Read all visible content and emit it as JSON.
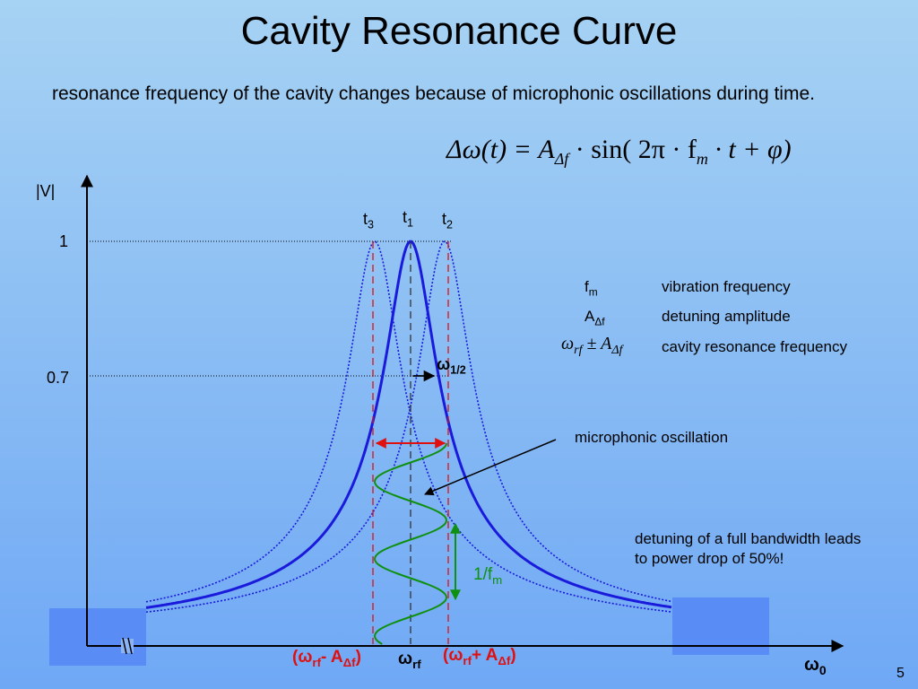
{
  "title": "Cavity Resonance Curve",
  "intro": "resonance frequency of the cavity changes because of microphonic oscillations during time.",
  "formula": {
    "lhs": "Δω(t) = A",
    "lhs_sub": "Δf",
    "mid": " · sin( 2π · f",
    "mid_sub": "m",
    "rhs": " · t + φ)"
  },
  "axes": {
    "y_label": "|V|",
    "tick_1": "1",
    "tick_07": "0.7",
    "x_label": "ω",
    "x_label_sub": "0"
  },
  "time_labels": [
    {
      "base": "t",
      "sub": "3"
    },
    {
      "base": "t",
      "sub": "1"
    },
    {
      "base": "t",
      "sub": "2"
    }
  ],
  "half_width": {
    "base": "ω",
    "sub": "1/2"
  },
  "legend": [
    {
      "sym": "f",
      "sym_sub": "m",
      "desc": "vibration frequency"
    },
    {
      "sym": "A",
      "sym_sub": "Δf",
      "desc": "detuning amplitude"
    },
    {
      "sym": "ω",
      "sym_sub": "rf",
      "sym_tail": " ± A",
      "sym_tail_sub": "Δf",
      "desc": "cavity resonance frequency"
    }
  ],
  "microphonic_label": "microphonic oscillation",
  "note": "detuning of a full bandwidth leads to power drop of 50%!",
  "period": {
    "base": "1/f",
    "sub": "m"
  },
  "x_marks": {
    "left": {
      "pre": "(ω",
      "sub1": "rf",
      "mid": "- A",
      "sub2": "Δf",
      "post": ")"
    },
    "center": {
      "pre": "ω",
      "sub1": "rf"
    },
    "right": {
      "pre": "(ω",
      "sub1": "rf",
      "mid": "+ A",
      "sub2": "Δf",
      "post": ")"
    }
  },
  "slide_number": "5",
  "colors": {
    "curve": "#1a1adc",
    "red": "#e01010",
    "green": "#109010",
    "box": "#5a8cf5"
  }
}
